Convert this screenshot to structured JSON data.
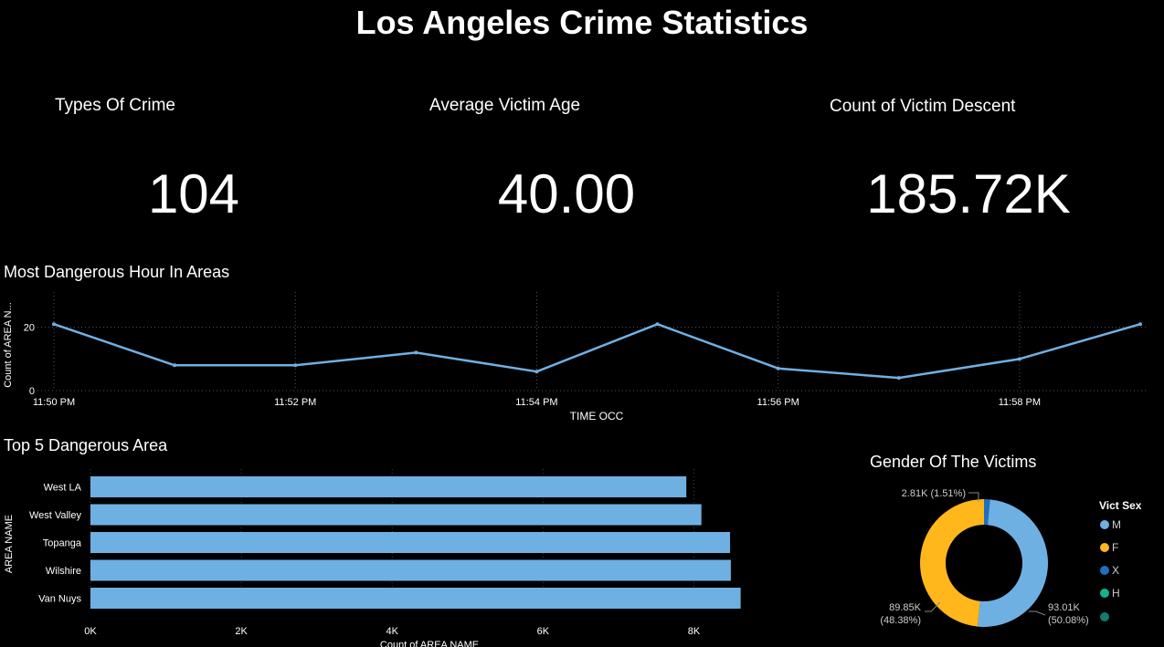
{
  "dashboard": {
    "title": "Los Angeles Crime Statistics"
  },
  "kpis": [
    {
      "label": "Types Of Crime",
      "value": "104"
    },
    {
      "label": "Average Victim Age",
      "value": "40.00"
    },
    {
      "label": "Count of Victim Descent",
      "value": "185.72K"
    }
  ],
  "line_section": {
    "title": "Most Dangerous Hour In Areas"
  },
  "bar_section": {
    "title": "Top 5 Dangerous Area"
  },
  "donut_section": {
    "title": "Gender Of The Victims"
  },
  "colors": {
    "series": "#6fb0e3",
    "F": "#ffb71b",
    "X": "#1f6fbd",
    "H": "#13b591",
    "other": "#0f7d70"
  },
  "chart_data": [
    {
      "type": "line",
      "title": "Most Dangerous Hour In Areas",
      "xlabel": "TIME OCC",
      "ylabel": "Count of AREA N...",
      "x": [
        "11:50 PM",
        "11:51 PM",
        "11:52 PM",
        "11:53 PM",
        "11:54 PM",
        "11:55 PM",
        "11:56 PM",
        "11:57 PM",
        "11:58 PM",
        "11:59 PM"
      ],
      "y": [
        21,
        8,
        8,
        12,
        6,
        21,
        7,
        4,
        10,
        21
      ],
      "xticks": [
        "11:50 PM",
        "11:52 PM",
        "11:54 PM",
        "11:56 PM",
        "11:58 PM"
      ],
      "yticks": [
        0,
        20
      ],
      "ylim": [
        0,
        30
      ],
      "grid": true
    },
    {
      "type": "bar",
      "orientation": "horizontal",
      "title": "Top 5 Dangerous Area",
      "xlabel": "Count of AREA NAME",
      "ylabel": "AREA NAME",
      "categories": [
        "West LA",
        "West Valley",
        "Topanga",
        "Wilshire",
        "Van Nuys"
      ],
      "values": [
        7900,
        8100,
        8480,
        8490,
        8620
      ],
      "xticks": [
        "0K",
        "2K",
        "4K",
        "6K",
        "8K"
      ],
      "xlim": [
        0,
        9000
      ],
      "grid": true
    },
    {
      "type": "pie",
      "donut": true,
      "title": "Gender Of The Victims",
      "legend_title": "Vict Sex",
      "legend_position": "right",
      "categories": [
        "M",
        "F",
        "X",
        "H",
        ""
      ],
      "values": [
        93010,
        89850,
        2810,
        0,
        0
      ],
      "data_labels": {
        "M": [
          "93.01K",
          "(50.08%)"
        ],
        "F": [
          "89.85K",
          "(48.38%)"
        ],
        "X": [
          "2.81K (1.51%)"
        ]
      }
    }
  ]
}
